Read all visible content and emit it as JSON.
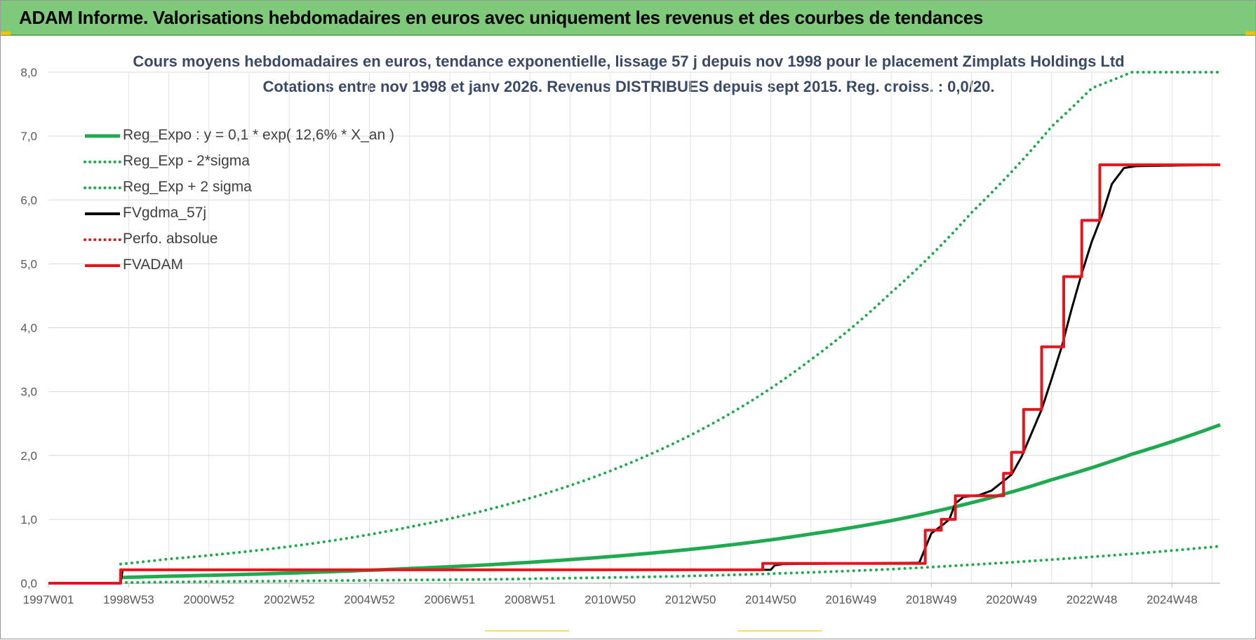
{
  "banner": {
    "title": "ADAM Informe. Valorisations hebdomadaires en euros avec uniquement les revenus et des courbes de tendances"
  },
  "chart_data": {
    "type": "line",
    "title": "Cours moyens hebdomadaires en euros, tendance exponentielle, lissage 57 j depuis nov 1998  pour le placement Zimplats Holdings Ltd",
    "subtitle": "Cotations entre nov 1998 et janv 2026. Revenus DISTRIBUES depuis sept 2015. Reg.  croiss. : 0,0/20.",
    "xlabel": "",
    "ylabel": "",
    "ylim": [
      0,
      8
    ],
    "xlim": [
      1997.0,
      2026.2
    ],
    "yticks": [
      "0,0",
      "1,0",
      "2,0",
      "3,0",
      "4,0",
      "5,0",
      "6,0",
      "7,0",
      "8,0"
    ],
    "xticks": [
      {
        "label": "1997W01",
        "x": 1997.0
      },
      {
        "label": "1998W53",
        "x": 1999.0
      },
      {
        "label": "2000W52",
        "x": 2001.0
      },
      {
        "label": "2002W52",
        "x": 2003.0
      },
      {
        "label": "2004W52",
        "x": 2005.0
      },
      {
        "label": "2006W51",
        "x": 2007.0
      },
      {
        "label": "2008W51",
        "x": 2009.0
      },
      {
        "label": "2010W50",
        "x": 2011.0
      },
      {
        "label": "2012W50",
        "x": 2013.0
      },
      {
        "label": "2014W50",
        "x": 2015.0
      },
      {
        "label": "2016W49",
        "x": 2017.0
      },
      {
        "label": "2018W49",
        "x": 2019.0
      },
      {
        "label": "2020W49",
        "x": 2021.0
      },
      {
        "label": "2022W48",
        "x": 2023.0
      },
      {
        "label": "2024W48",
        "x": 2025.0
      }
    ],
    "grid": true,
    "legend_position": "top-left",
    "series": [
      {
        "name": "Reg_Expo : y = 0,1 * exp( 12,6% *  X_an )",
        "color": "#1faa4f",
        "style": "solid",
        "width": 5,
        "x": [
          1998.8,
          2000,
          2002,
          2004,
          2006,
          2008,
          2010,
          2012,
          2014,
          2016,
          2018,
          2020,
          2022,
          2024,
          2026.2
        ],
        "y": [
          0.09,
          0.11,
          0.14,
          0.18,
          0.23,
          0.29,
          0.37,
          0.47,
          0.6,
          0.77,
          0.98,
          1.26,
          1.62,
          2.02,
          2.48
        ]
      },
      {
        "name": "Reg_Exp - 2*sigma",
        "color": "#1faa4f",
        "style": "dotted",
        "width": 4,
        "x": [
          1998.8,
          2000,
          2002,
          2004,
          2006,
          2008,
          2010,
          2012,
          2014,
          2016,
          2018,
          2020,
          2022,
          2024,
          2026.2
        ],
        "y": [
          0.01,
          0.02,
          0.03,
          0.04,
          0.05,
          0.06,
          0.08,
          0.1,
          0.13,
          0.17,
          0.22,
          0.29,
          0.37,
          0.46,
          0.58
        ]
      },
      {
        "name": "Reg_Exp + 2 sigma",
        "color": "#1faa4f",
        "style": "dotted",
        "width": 4,
        "x": [
          1998.8,
          2000,
          2002,
          2004,
          2006,
          2008,
          2010,
          2012,
          2014,
          2016,
          2018,
          2020,
          2022,
          2023,
          2024,
          2025,
          2026.2
        ],
        "y": [
          0.3,
          0.38,
          0.5,
          0.66,
          0.88,
          1.16,
          1.53,
          2.02,
          2.66,
          3.5,
          4.55,
          5.8,
          7.15,
          7.75,
          8.0,
          8.0,
          8.0
        ]
      },
      {
        "name": "FVgdma_57j",
        "color": "#000000",
        "style": "solid",
        "width": 3,
        "x": [
          1997.0,
          1998.8,
          1998.85,
          2015.0,
          2015.1,
          2015.3,
          2018.7,
          2018.85,
          2019.0,
          2019.15,
          2019.3,
          2019.45,
          2019.6,
          2019.8,
          2020.2,
          2020.5,
          2021.0,
          2021.25,
          2021.5,
          2021.75,
          2022.0,
          2022.25,
          2022.5,
          2022.75,
          2023.0,
          2023.25,
          2023.5,
          2023.8,
          2024.1,
          2026.2
        ],
        "y": [
          0.0,
          0.0,
          0.21,
          0.21,
          0.28,
          0.3,
          0.32,
          0.55,
          0.78,
          0.85,
          0.92,
          1.0,
          1.25,
          1.35,
          1.38,
          1.45,
          1.7,
          1.98,
          2.35,
          2.72,
          3.2,
          3.7,
          4.3,
          4.85,
          5.35,
          5.75,
          6.25,
          6.5,
          6.53,
          6.55
        ]
      },
      {
        "name": "Perfo. absolue",
        "color": "#e8141b",
        "style": "dotted",
        "width": 3,
        "x": [],
        "y": []
      },
      {
        "name": "FVADAM",
        "color": "#e8141b",
        "style": "step",
        "width": 4,
        "x": [
          1997.0,
          1998.8,
          1998.8,
          2014.8,
          2014.8,
          2018.85,
          2018.85,
          2019.25,
          2019.25,
          2019.6,
          2019.6,
          2020.8,
          2020.8,
          2021.0,
          2021.0,
          2021.3,
          2021.3,
          2021.75,
          2021.75,
          2022.3,
          2022.3,
          2022.75,
          2022.75,
          2023.2,
          2023.2,
          2023.65,
          2023.65,
          2026.2
        ],
        "y": [
          0.0,
          0.0,
          0.21,
          0.21,
          0.31,
          0.31,
          0.83,
          0.83,
          1.0,
          1.0,
          1.37,
          1.37,
          1.72,
          1.72,
          2.05,
          2.05,
          2.72,
          2.72,
          3.7,
          3.7,
          4.8,
          4.8,
          5.68,
          5.68,
          6.55,
          6.55,
          6.55,
          6.55
        ]
      }
    ]
  }
}
